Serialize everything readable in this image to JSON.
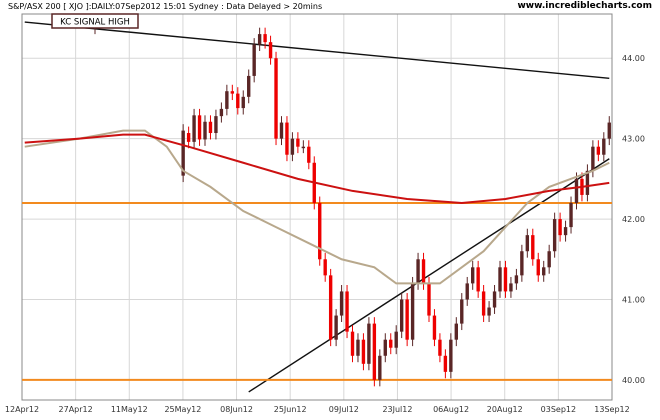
{
  "header": {
    "left": "S&P/ASX 200 [ XJO ]:DAILY:07Sep2012 15:01 Sydney : Data Delayed > 20mins",
    "right": "www.incrediblecharts.com"
  },
  "annotation": {
    "label": "KC SIGNAL HIGH"
  },
  "colors": {
    "up": "#5a2626",
    "down": "#ee0000",
    "ma_fast": "#b8a88c",
    "ma_slow": "#cc1111",
    "trendline": "#111111",
    "support": "#f28a1e",
    "grid": "#d7d7d7"
  },
  "chart_data": {
    "type": "candlestick",
    "title": "S&P/ASX 200 [ XJO ]:DAILY:07Sep2012 15:01 Sydney : Data Delayed > 20mins",
    "x_tick_labels": [
      "12Apr12",
      "27Apr12",
      "11May12",
      "25May12",
      "08Jun12",
      "25Jun12",
      "09Jul12",
      "23Jul12",
      "06Aug12",
      "20Aug12",
      "03Sep12",
      "13Sep12"
    ],
    "y_tick_labels": [
      "44.00",
      "43.00",
      "42.00",
      "41.00",
      "40.00"
    ],
    "ylim": [
      39.75,
      44.55
    ],
    "y_unit": "hundreds",
    "grid": true,
    "num_bars": 108,
    "candles": [
      [
        29,
        42.54,
        43.1
      ],
      [
        30,
        43.07,
        42.96
      ],
      [
        31,
        42.96,
        43.29
      ],
      [
        32,
        43.29,
        42.99
      ],
      [
        33,
        42.99,
        43.21
      ],
      [
        34,
        43.21,
        43.07
      ],
      [
        35,
        43.07,
        43.28
      ],
      [
        36,
        43.28,
        43.37
      ],
      [
        37,
        43.37,
        43.59
      ],
      [
        38,
        43.59,
        43.56
      ],
      [
        39,
        43.56,
        43.38
      ],
      [
        40,
        43.38,
        43.52
      ],
      [
        41,
        43.52,
        43.78
      ],
      [
        42,
        43.78,
        44.17
      ],
      [
        43,
        44.17,
        44.3
      ],
      [
        44,
        44.3,
        44.2
      ],
      [
        45,
        44.2,
        44.0
      ],
      [
        46,
        44.0,
        43.0
      ],
      [
        47,
        43.0,
        43.2
      ],
      [
        48,
        43.2,
        42.8
      ],
      [
        49,
        42.8,
        43.0
      ],
      [
        50,
        43.0,
        42.9
      ],
      [
        51,
        42.9,
        42.9
      ],
      [
        52,
        42.9,
        42.7
      ],
      [
        53,
        42.7,
        42.2
      ],
      [
        54,
        42.2,
        41.5
      ],
      [
        55,
        41.5,
        41.3
      ],
      [
        56,
        41.3,
        40.5
      ],
      [
        57,
        40.5,
        40.8
      ],
      [
        58,
        40.8,
        41.1
      ],
      [
        59,
        41.1,
        40.6
      ],
      [
        60,
        40.6,
        40.3
      ],
      [
        61,
        40.3,
        40.5
      ],
      [
        62,
        40.5,
        40.2
      ],
      [
        63,
        40.2,
        40.7
      ],
      [
        64,
        40.7,
        40.0
      ],
      [
        65,
        40.0,
        40.3
      ],
      [
        66,
        40.3,
        40.5
      ],
      [
        67,
        40.5,
        40.4
      ],
      [
        68,
        40.4,
        40.6
      ],
      [
        69,
        40.6,
        41.0
      ],
      [
        70,
        41.0,
        40.5
      ],
      [
        71,
        40.5,
        41.2
      ],
      [
        72,
        41.2,
        41.5
      ],
      [
        73,
        41.5,
        41.2
      ],
      [
        74,
        41.2,
        40.8
      ],
      [
        75,
        40.8,
        40.5
      ],
      [
        76,
        40.5,
        40.3
      ],
      [
        77,
        40.3,
        40.1
      ],
      [
        78,
        40.1,
        40.5
      ],
      [
        79,
        40.5,
        40.7
      ],
      [
        80,
        40.7,
        41.0
      ],
      [
        81,
        41.0,
        41.2
      ],
      [
        82,
        41.2,
        41.4
      ],
      [
        83,
        41.4,
        41.1
      ],
      [
        84,
        41.1,
        40.8
      ],
      [
        85,
        40.8,
        40.9
      ],
      [
        86,
        40.9,
        41.1
      ],
      [
        87,
        41.1,
        41.4
      ],
      [
        88,
        41.4,
        41.1
      ],
      [
        89,
        41.1,
        41.2
      ],
      [
        90,
        41.2,
        41.3
      ],
      [
        91,
        41.3,
        41.6
      ],
      [
        92,
        41.6,
        41.8
      ],
      [
        93,
        41.8,
        41.5
      ],
      [
        94,
        41.5,
        41.3
      ],
      [
        95,
        41.3,
        41.4
      ],
      [
        96,
        41.4,
        41.6
      ],
      [
        97,
        41.6,
        42.0
      ],
      [
        98,
        42.0,
        41.8
      ],
      [
        99,
        41.8,
        41.9
      ],
      [
        100,
        41.9,
        42.2
      ],
      [
        101,
        42.2,
        42.5
      ],
      [
        102,
        42.5,
        42.3
      ],
      [
        103,
        42.3,
        42.6
      ],
      [
        104,
        42.6,
        42.9
      ],
      [
        105,
        42.9,
        42.8
      ],
      [
        106,
        42.8,
        43.0
      ],
      [
        107,
        43.0,
        43.2
      ]
    ],
    "ma_fast": [
      [
        0,
        42.9
      ],
      [
        10,
        43.0
      ],
      [
        18,
        43.1
      ],
      [
        22,
        43.1
      ],
      [
        26,
        42.9
      ],
      [
        29,
        42.6
      ],
      [
        34,
        42.4
      ],
      [
        40,
        42.1
      ],
      [
        46,
        41.9
      ],
      [
        52,
        41.7
      ],
      [
        58,
        41.5
      ],
      [
        64,
        41.4
      ],
      [
        68,
        41.2
      ],
      [
        72,
        41.2
      ],
      [
        76,
        41.2
      ],
      [
        80,
        41.4
      ],
      [
        84,
        41.6
      ],
      [
        88,
        41.9
      ],
      [
        92,
        42.2
      ],
      [
        96,
        42.4
      ],
      [
        100,
        42.5
      ],
      [
        104,
        42.6
      ],
      [
        107,
        42.7
      ]
    ],
    "ma_slow": [
      [
        0,
        42.95
      ],
      [
        10,
        43.0
      ],
      [
        18,
        43.05
      ],
      [
        22,
        43.05
      ],
      [
        30,
        42.9
      ],
      [
        40,
        42.7
      ],
      [
        50,
        42.5
      ],
      [
        60,
        42.35
      ],
      [
        70,
        42.25
      ],
      [
        80,
        42.2
      ],
      [
        88,
        42.25
      ],
      [
        96,
        42.35
      ],
      [
        102,
        42.4
      ],
      [
        107,
        42.45
      ]
    ],
    "trendlines": [
      {
        "label": "resistance",
        "x": [
          0,
          107
        ],
        "y": [
          44.45,
          43.75
        ]
      },
      {
        "label": "rising support",
        "x": [
          41,
          107
        ],
        "y": [
          39.85,
          42.75
        ]
      }
    ],
    "support_levels": [
      40.0,
      42.2
    ]
  }
}
